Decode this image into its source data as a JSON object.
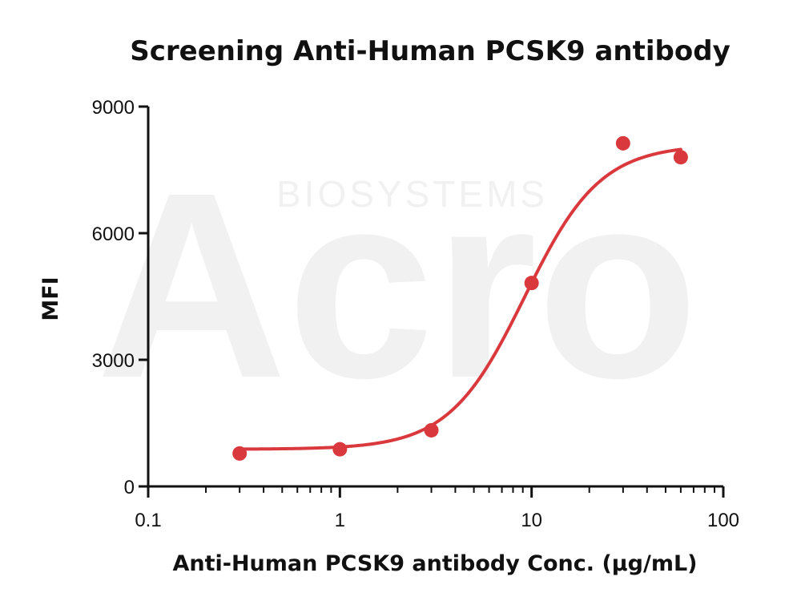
{
  "chart_data": {
    "type": "scatter",
    "title": "Screening Anti-Human PCSK9 antibody",
    "xlabel": "Anti-Human PCSK9 antibody Conc. (μg/mL)",
    "ylabel": "MFI",
    "x_scale": "log",
    "xlim": [
      0.1,
      100
    ],
    "ylim": [
      0,
      9000
    ],
    "x_ticks": [
      0.1,
      1,
      10,
      100
    ],
    "x_tick_labels": [
      "0.1",
      "1",
      "10",
      "100"
    ],
    "y_ticks": [
      0,
      3000,
      6000,
      9000
    ],
    "y_tick_labels": [
      "0",
      "3000",
      "6000",
      "9000"
    ],
    "series": [
      {
        "points": [
          {
            "x": 0.3,
            "y": 780
          },
          {
            "x": 1,
            "y": 880
          },
          {
            "x": 3,
            "y": 1330
          },
          {
            "x": 10,
            "y": 4820
          },
          {
            "x": 30,
            "y": 8130
          },
          {
            "x": 60,
            "y": 7800
          }
        ],
        "fit": {
          "model": "4PL",
          "bottom": 880,
          "top": 8100,
          "ec50": 9.2,
          "hill": 2.2
        },
        "color": "#d9393c"
      }
    ],
    "grid": false,
    "legend": "none",
    "watermark": {
      "text": "BIOSYSTEMS",
      "logo": "Acro"
    }
  }
}
